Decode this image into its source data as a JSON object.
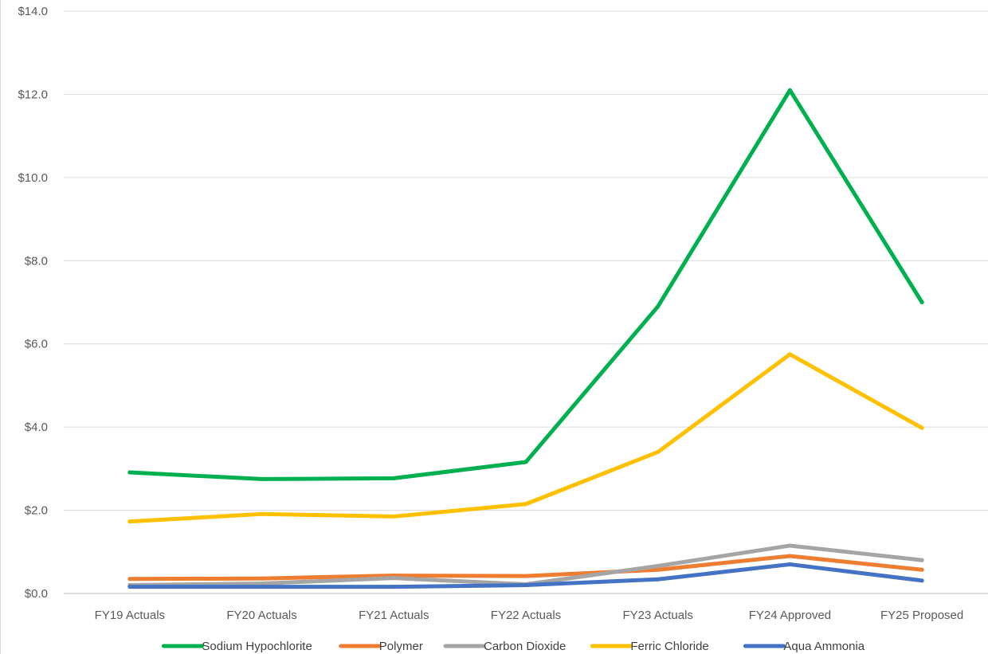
{
  "chart_data": {
    "type": "line",
    "categories": [
      "FY19 Actuals",
      "FY20 Actuals",
      "FY21 Actuals",
      "FY22 Actuals",
      "FY23 Actuals",
      "FY24 Approved",
      "FY25 Proposed"
    ],
    "ylim": [
      0,
      14
    ],
    "y_ticks": [
      "$0.0",
      "$2.0",
      "$4.0",
      "$6.0",
      "$8.0",
      "$10.0",
      "$12.0",
      "$14.0"
    ],
    "y_tick_values": [
      0,
      2,
      4,
      6,
      8,
      10,
      12,
      14
    ],
    "grid": true,
    "legend_position": "bottom",
    "series": [
      {
        "name": "Polymer",
        "color": "#ED7D31",
        "values": [
          0.35,
          0.36,
          0.43,
          0.42,
          0.57,
          0.9,
          0.57
        ]
      },
      {
        "name": "Carbon Dioxide",
        "color": "#A5A5A5",
        "values": [
          0.2,
          0.24,
          0.37,
          0.22,
          0.66,
          1.15,
          0.8
        ]
      },
      {
        "name": "Aqua Ammonia",
        "color": "#4472C4",
        "values": [
          0.16,
          0.16,
          0.16,
          0.2,
          0.34,
          0.7,
          0.31
        ]
      },
      {
        "name": "Ferric Chloride",
        "color": "#FFC000",
        "values": [
          1.73,
          1.91,
          1.85,
          2.15,
          3.4,
          5.75,
          3.98
        ]
      },
      {
        "name": "Sodium Hypochlorite",
        "color": "#00B050",
        "values": [
          2.91,
          2.75,
          2.77,
          3.16,
          6.9,
          12.1,
          7.0
        ]
      }
    ],
    "legend_order": [
      "Sodium Hypochlorite",
      "Polymer",
      "Carbon Dioxide",
      "Ferric Chloride",
      "Aqua Ammonia"
    ]
  }
}
